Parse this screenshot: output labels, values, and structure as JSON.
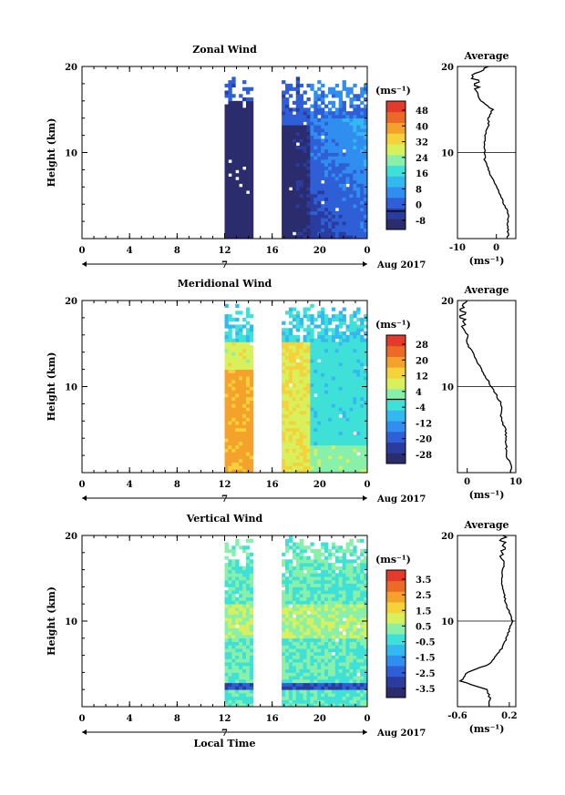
{
  "colors": {
    "axis": "#000000",
    "cmap": [
      "#2b2c6e",
      "#2a3c9e",
      "#2f5fd6",
      "#2f8ef0",
      "#33b8f0",
      "#3fe0d8",
      "#88f0a8",
      "#d8f05c",
      "#f5d23a",
      "#f4a22c",
      "#ec6a28",
      "#e33a2c"
    ]
  },
  "chart_data": [
    {
      "type": "heatmap",
      "name": "zonal",
      "title": "Zonal Wind",
      "ylabel": "Height (km)",
      "xlim": [
        0,
        24
      ],
      "ylim": [
        0,
        20
      ],
      "x_ticks": [
        "0",
        "4",
        "8",
        "12",
        "16",
        "20",
        "0"
      ],
      "y_ticks": [
        "10",
        "20"
      ],
      "date_marker": "7",
      "date_label": "Aug 2017",
      "data_blocks": [
        [
          12,
          14.4
        ],
        [
          16.8,
          24
        ]
      ],
      "colorbar": {
        "unit": "(ms⁻¹)",
        "ticks": [
          "48",
          "40",
          "32",
          "24",
          "16",
          "8",
          "0",
          "-8"
        ],
        "range": [
          -8,
          48
        ],
        "contour": 0
      },
      "average": {
        "title": "Average",
        "xlabel": "(ms⁻¹)",
        "x_ticks": [
          "-10",
          "0"
        ],
        "xlim": [
          -10,
          5
        ],
        "profile_heights": [
          0,
          1,
          2,
          3,
          4,
          5,
          6,
          7,
          8,
          9,
          10,
          11,
          12,
          13,
          14,
          15,
          16,
          17,
          18,
          19,
          20
        ],
        "profile_values": [
          3,
          3,
          3,
          3,
          2,
          1,
          0,
          -1,
          -2,
          -3,
          -3,
          -3,
          -3,
          -2,
          -2,
          -1,
          -4,
          -5,
          -5,
          -6,
          -2
        ]
      }
    },
    {
      "type": "heatmap",
      "name": "meridional",
      "title": "Meridional Wind",
      "ylabel": "Height (km)",
      "xlim": [
        0,
        24
      ],
      "ylim": [
        0,
        20
      ],
      "x_ticks": [
        "0",
        "4",
        "8",
        "12",
        "16",
        "20",
        "0"
      ],
      "y_ticks": [
        "10",
        "20"
      ],
      "date_marker": "7",
      "date_label": "Aug 2017",
      "data_blocks": [
        [
          12,
          14.4
        ],
        [
          16.8,
          24
        ]
      ],
      "colorbar": {
        "unit": "(ms⁻¹)",
        "ticks": [
          "28",
          "20",
          "12",
          "4",
          "-4",
          "-12",
          "-20",
          "-28"
        ],
        "range": [
          -28,
          28
        ],
        "contour": 0
      },
      "average": {
        "title": "Average",
        "xlabel": "(ms⁻¹)",
        "x_ticks": [
          "0",
          "10"
        ],
        "xlim": [
          -2,
          10
        ],
        "profile_heights": [
          0,
          1,
          2,
          3,
          4,
          5,
          6,
          7,
          8,
          9,
          10,
          11,
          12,
          13,
          14,
          15,
          16,
          17,
          18,
          19,
          20
        ],
        "profile_values": [
          9,
          9,
          8,
          8,
          8,
          8,
          7,
          7,
          7,
          6,
          5,
          4,
          3,
          2,
          1,
          0,
          0,
          -1,
          -1,
          -1,
          0
        ]
      }
    },
    {
      "type": "heatmap",
      "name": "vertical",
      "title": "Vertical Wind",
      "ylabel": "Height (km)",
      "xlabel": "Local Time",
      "xlim": [
        0,
        24
      ],
      "ylim": [
        0,
        20
      ],
      "x_ticks": [
        "0",
        "4",
        "8",
        "12",
        "16",
        "20",
        "0"
      ],
      "y_ticks": [
        "10",
        "20"
      ],
      "date_marker": "7",
      "date_label": "Aug 2017",
      "data_blocks": [
        [
          12,
          14.4
        ],
        [
          16.8,
          24
        ]
      ],
      "colorbar": {
        "unit": "(ms⁻¹)",
        "ticks": [
          "3.5",
          "2.5",
          "1.5",
          "0.5",
          "-0.5",
          "-1.5",
          "-2.5",
          "-3.5"
        ],
        "range": [
          -3.5,
          3.5
        ]
      },
      "average": {
        "title": "Average",
        "xlabel": "(ms⁻¹)",
        "x_ticks": [
          "-0.6",
          "0.2"
        ],
        "xlim": [
          -0.6,
          0.3
        ],
        "profile_heights": [
          0,
          1,
          2,
          3,
          4,
          5,
          6,
          7,
          8,
          9,
          10,
          11,
          12,
          13,
          14,
          15,
          16,
          17,
          18,
          19,
          20
        ],
        "profile_values": [
          -0.1,
          -0.1,
          -0.15,
          -0.55,
          -0.45,
          -0.1,
          0.0,
          0.1,
          0.15,
          0.2,
          0.25,
          0.2,
          0.15,
          0.12,
          0.1,
          0.08,
          0.1,
          0.12,
          0.1,
          0.1,
          0.1
        ]
      }
    }
  ]
}
